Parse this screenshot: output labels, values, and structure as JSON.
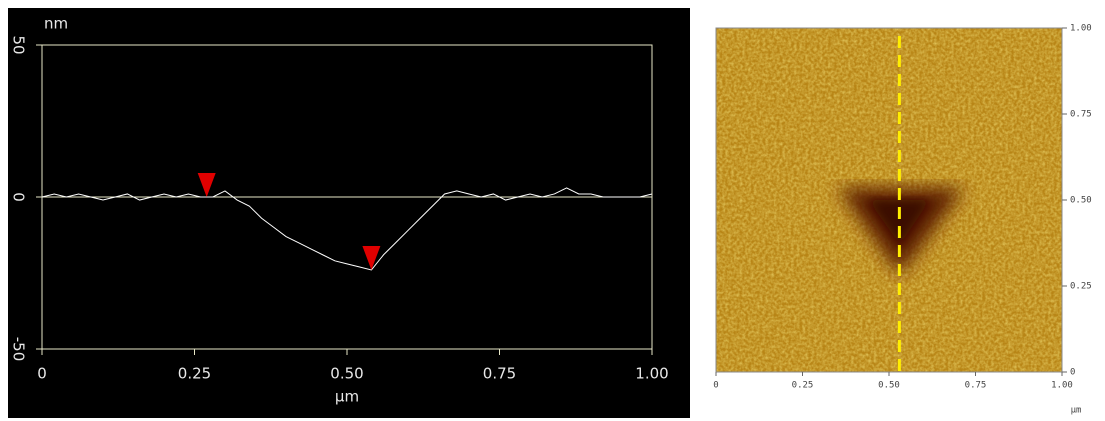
{
  "chart_data": [
    {
      "type": "line",
      "x_label": "μm",
      "y_label": "nm",
      "x": [
        0,
        0.02,
        0.04,
        0.06,
        0.08,
        0.1,
        0.12,
        0.14,
        0.16,
        0.18,
        0.2,
        0.22,
        0.24,
        0.26,
        0.28,
        0.3,
        0.32,
        0.34,
        0.36,
        0.38,
        0.4,
        0.42,
        0.44,
        0.46,
        0.48,
        0.5,
        0.52,
        0.54,
        0.56,
        0.58,
        0.6,
        0.62,
        0.64,
        0.66,
        0.68,
        0.7,
        0.72,
        0.74,
        0.76,
        0.78,
        0.8,
        0.82,
        0.84,
        0.86,
        0.88,
        0.9,
        0.92,
        0.94,
        0.96,
        0.98,
        1.0
      ],
      "values": [
        0,
        1,
        0,
        1,
        0,
        -1,
        0,
        1,
        -1,
        0,
        1,
        0,
        1,
        0,
        0,
        2,
        -1,
        -3,
        -7,
        -10,
        -13,
        -15,
        -17,
        -19,
        -21,
        -22,
        -23,
        -24,
        -19,
        -15,
        -11,
        -7,
        -3,
        1,
        2,
        1,
        0,
        1,
        -1,
        0,
        1,
        0,
        1,
        3,
        1,
        1,
        0,
        0,
        0,
        0,
        1
      ],
      "color": "#ffffff",
      "markers": {
        "x": [
          0.27,
          0.54
        ],
        "y": [
          0,
          -24
        ],
        "color": "#e00000"
      },
      "xlim": [
        0,
        1
      ],
      "ylim": [
        -50,
        50
      ],
      "xticks": [
        0,
        0.25,
        {
          "value": 0.5,
          "label": "0.50"
        },
        0.75,
        {
          "value": 1,
          "label": "1.00"
        }
      ],
      "yticks": [
        50,
        0,
        -50
      ]
    },
    {
      "type": "image",
      "x_label": "μm",
      "cursor_x": 0.53,
      "cursor_color": "#ffee00",
      "xlim": [
        0,
        1
      ],
      "ylim": [
        0,
        1
      ],
      "xticks": [
        0,
        0.25,
        {
          "value": 0.5,
          "label": "0.50"
        },
        0.75,
        {
          "value": 1,
          "label": "1.00"
        }
      ],
      "yticks": [
        0,
        0.25,
        {
          "value": 0.5,
          "label": "0.50"
        },
        0.75,
        {
          "value": 1,
          "label": "1.00"
        }
      ]
    }
  ]
}
